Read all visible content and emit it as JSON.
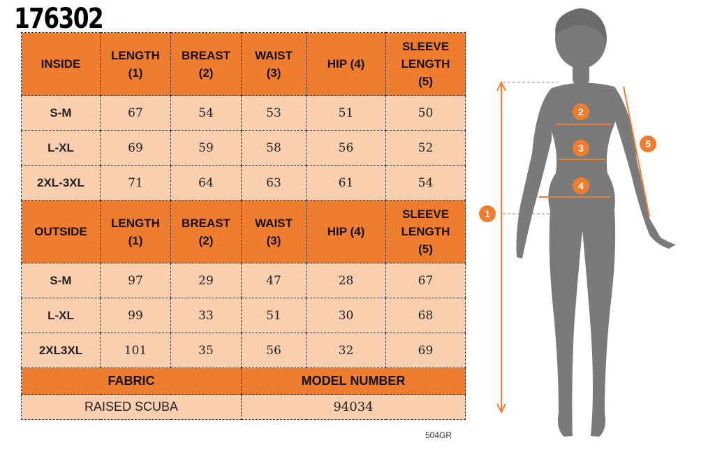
{
  "product_code": "176302",
  "inside": {
    "headers": [
      "INSIDE",
      "LENGTH\n(1)",
      "BREAST\n(2)",
      "WAIST\n(3)",
      "HIP (4)",
      "SLEEVE\nLENGTH\n(5)"
    ],
    "rows": [
      [
        "S-M",
        "67",
        "54",
        "53",
        "51",
        "50"
      ],
      [
        "L-XL",
        "69",
        "59",
        "58",
        "56",
        "52"
      ],
      [
        "2XL-3XL",
        "71",
        "64",
        "63",
        "61",
        "54"
      ]
    ]
  },
  "outside": {
    "headers": [
      "OUTSIDE",
      "LENGTH\n(1)",
      "BREAST\n(2)",
      "WAIST\n(3)",
      "HIP (4)",
      "SLEEVE\nLENGTH\n(5)"
    ],
    "rows": [
      [
        "S-M",
        "97",
        "29",
        "47",
        "28",
        "67"
      ],
      [
        "L-XL",
        "99",
        "33",
        "51",
        "30",
        "68"
      ],
      [
        "2XL3XL",
        "101",
        "35",
        "56",
        "32",
        "69"
      ]
    ]
  },
  "fabric": {
    "label": "FABRIC",
    "value": "RAISED SCUBA"
  },
  "model": {
    "label": "MODEL NUMBER",
    "value": "94034"
  },
  "footer_code": "504GR",
  "figure": {
    "markers": [
      "1",
      "2",
      "3",
      "4",
      "5"
    ],
    "accent": "#ef7d2d",
    "silhouette": "#7a7a7a"
  }
}
